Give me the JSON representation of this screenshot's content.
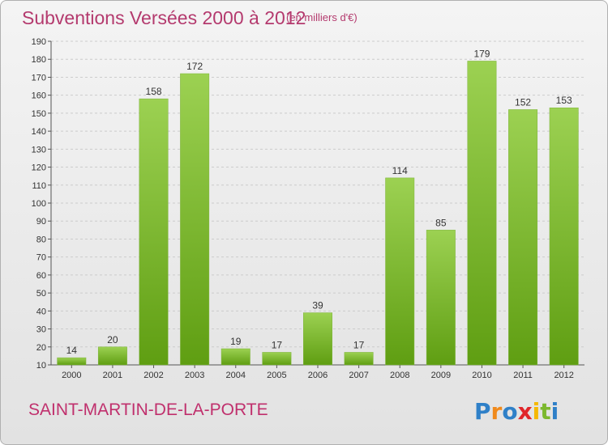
{
  "header": {
    "title": "Subventions Versées 2000 à 2012",
    "subtitle": "(en milliers d'€)"
  },
  "footer": {
    "commune": "SAINT-MARTIN-DE-LA-PORTE",
    "logo_text": "Proxiti"
  },
  "colors": {
    "bar_top": "#9cd152",
    "bar_bottom": "#5f9e12",
    "title": "#b43a6e",
    "grid": "#cccccc"
  },
  "chart_data": {
    "type": "bar",
    "title": "Subventions Versées 2000 à 2012",
    "subtitle": "(en milliers d'€)",
    "categories": [
      "2000",
      "2001",
      "2002",
      "2003",
      "2004",
      "2005",
      "2006",
      "2007",
      "2008",
      "2009",
      "2010",
      "2011",
      "2012"
    ],
    "values": [
      14,
      20,
      158,
      172,
      19,
      17,
      39,
      17,
      114,
      85,
      179,
      152,
      153
    ],
    "ylim": [
      10,
      190
    ],
    "yticks": [
      10,
      20,
      30,
      40,
      50,
      60,
      70,
      80,
      90,
      100,
      110,
      120,
      130,
      140,
      150,
      160,
      170,
      180,
      190
    ],
    "grid": true,
    "legend": "none"
  }
}
